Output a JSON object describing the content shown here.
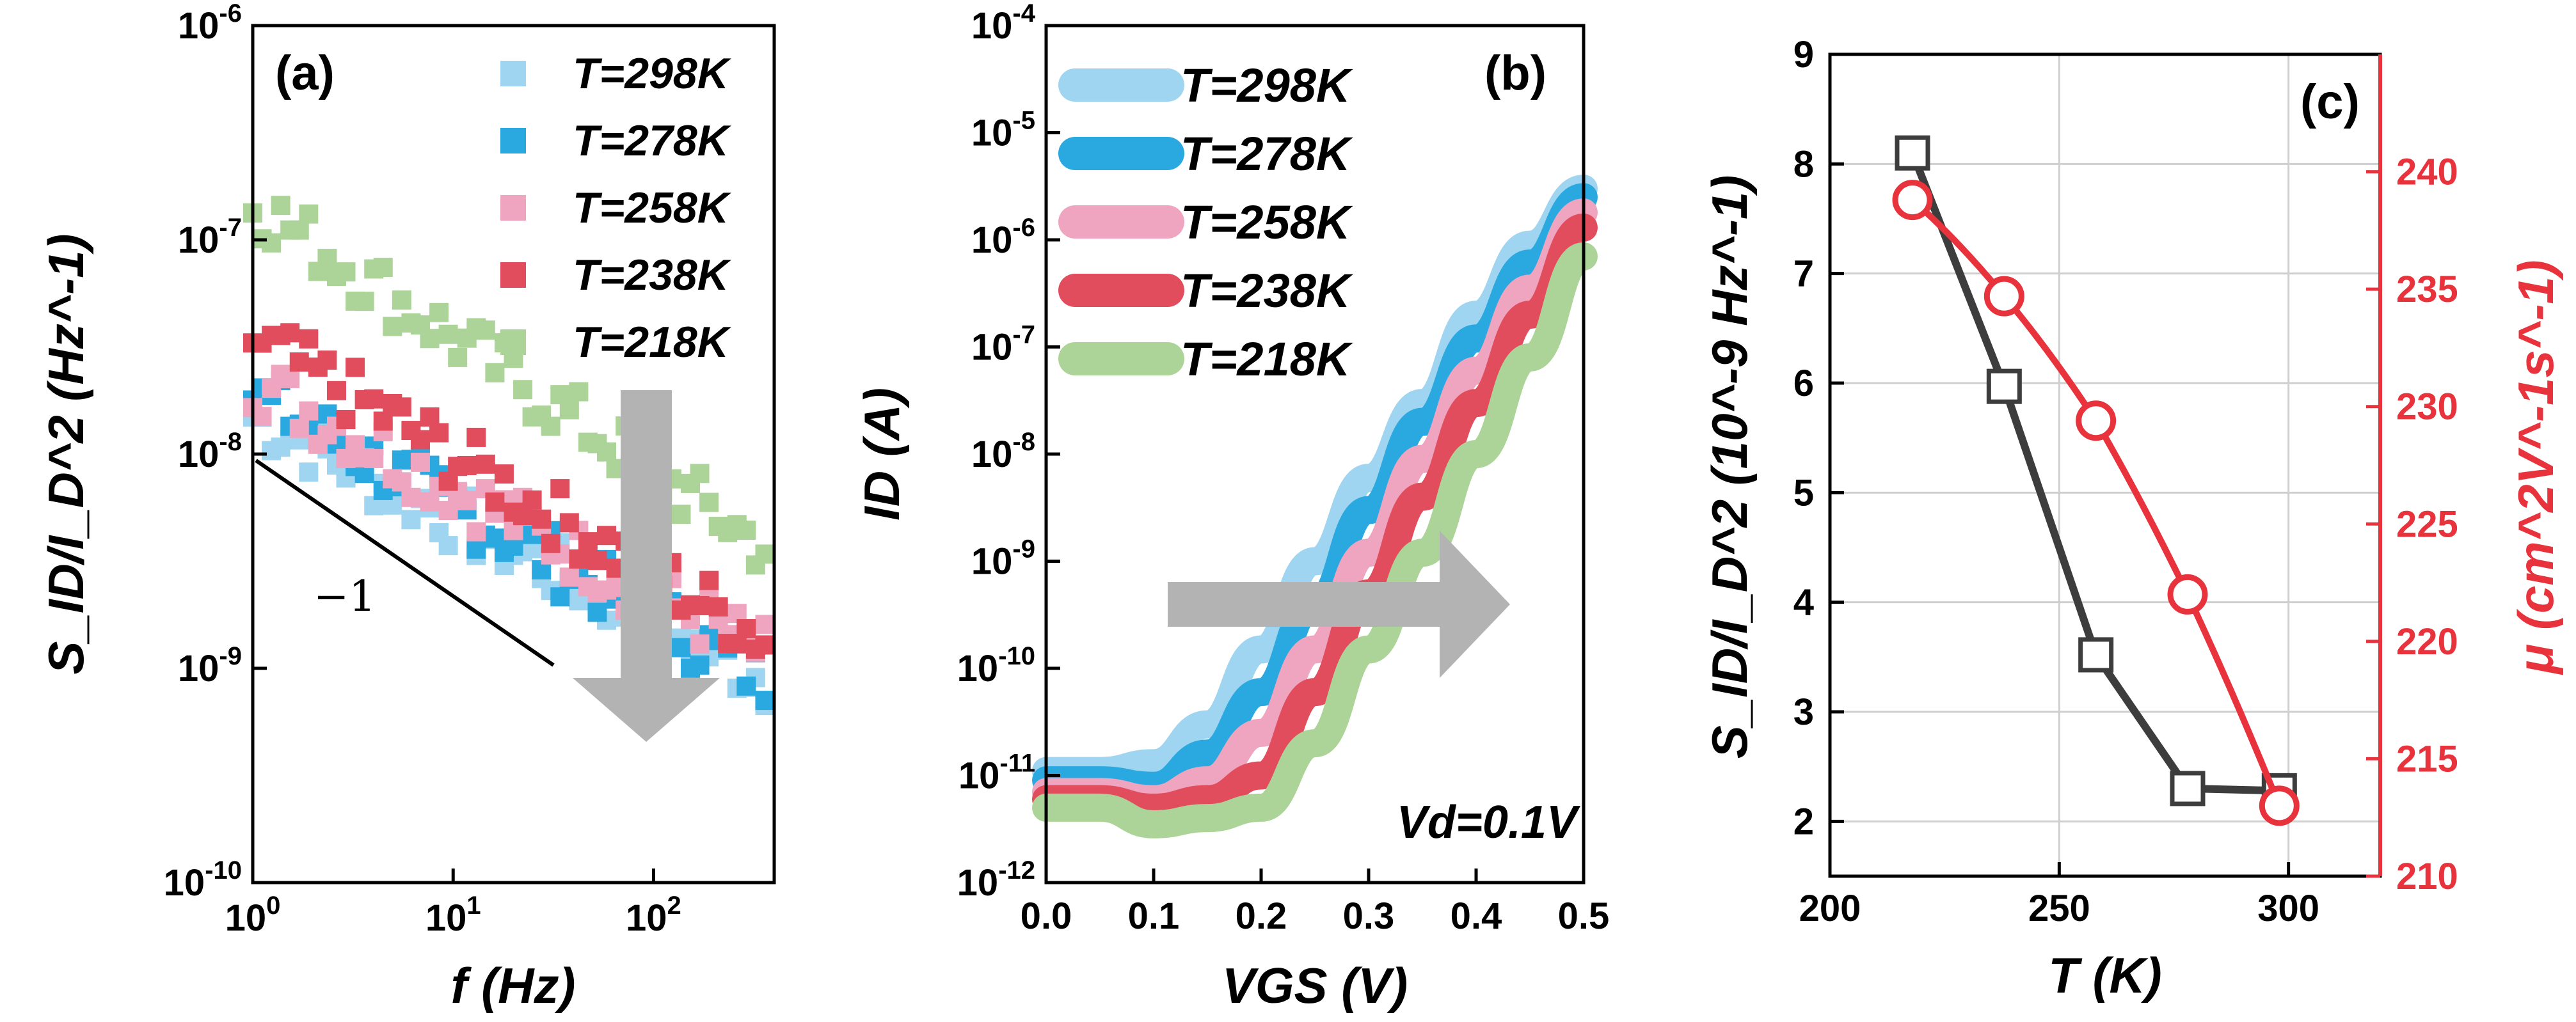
{
  "figure": {
    "panels": [
      {
        "id": "a",
        "panel_label": "(a)",
        "type": "scatter",
        "xscale": "log",
        "yscale": "log",
        "xlabel": "f (Hz)",
        "ylabel": "S_ID/I_D^2 (Hz^-1)",
        "xlim": [
          1,
          400
        ],
        "ylim": [
          1e-10,
          1e-06
        ],
        "xtick_labels": [
          "10^0",
          "10^1",
          "10^2"
        ],
        "ytick_labels": [
          "10^-10",
          "10^-9",
          "10^-8",
          "10^-7",
          "10^-6"
        ],
        "series": [
          {
            "name": "T=298K",
            "color": "#9fd5f0",
            "A": 1.5e-08,
            "slope": -0.48
          },
          {
            "name": "T=278K",
            "color": "#2aa9e0",
            "A": 1.9e-08,
            "slope": -0.52
          },
          {
            "name": "T=258K",
            "color": "#efa5c0",
            "A": 2.2e-08,
            "slope": -0.5
          },
          {
            "name": "T=238K",
            "color": "#e14d5d",
            "A": 3.5e-08,
            "slope": -0.55
          },
          {
            "name": "T=218K",
            "color": "#acd498",
            "A": 1.5e-07,
            "slope": -0.63
          }
        ],
        "reference_line": {
          "label": "−1",
          "from": [
            1,
            1e-08
          ],
          "to": [
            30,
            1.1e-09
          ]
        },
        "trend_arrow": "down"
      },
      {
        "id": "b",
        "panel_label": "(b)",
        "type": "line",
        "xscale": "linear",
        "yscale": "log",
        "xlabel": "VGS (V)",
        "ylabel": "ID (A)",
        "xlim": [
          0.0,
          0.5
        ],
        "ylim": [
          1e-12,
          0.0001
        ],
        "xtick_labels": [
          "0.0",
          "0.1",
          "0.2",
          "0.3",
          "0.4",
          "0.5"
        ],
        "ytick_labels": [
          "10^-12",
          "10^-11",
          "10^-10",
          "10^-9",
          "10^-8",
          "10^-7",
          "10^-6",
          "10^-5",
          "10^-4"
        ],
        "annotation": "Vd=0.1V",
        "trend_arrow": "right",
        "series": [
          {
            "name": "T=298K",
            "color": "#9fd5f0",
            "points": [
              [
                0.0,
                1.1e-11
              ],
              [
                0.05,
                1.1e-11
              ],
              [
                0.1,
                1.3e-11
              ],
              [
                0.15,
                3e-11
              ],
              [
                0.2,
                1.5e-10
              ],
              [
                0.25,
                1e-09
              ],
              [
                0.3,
                6e-09
              ],
              [
                0.35,
                3e-08
              ],
              [
                0.4,
                2e-07
              ],
              [
                0.45,
                9e-07
              ],
              [
                0.5,
                3e-06
              ]
            ]
          },
          {
            "name": "T=278K",
            "color": "#2aa9e0",
            "points": [
              [
                0.0,
                9e-12
              ],
              [
                0.05,
                9e-12
              ],
              [
                0.1,
                8e-12
              ],
              [
                0.15,
                1.6e-11
              ],
              [
                0.2,
                6e-11
              ],
              [
                0.25,
                4e-10
              ],
              [
                0.3,
                3e-09
              ],
              [
                0.35,
                2e-08
              ],
              [
                0.4,
                1.2e-07
              ],
              [
                0.45,
                6e-07
              ],
              [
                0.5,
                2.5e-06
              ]
            ]
          },
          {
            "name": "T=258K",
            "color": "#efa5c0",
            "points": [
              [
                0.0,
                7e-12
              ],
              [
                0.05,
                7e-12
              ],
              [
                0.1,
                6e-12
              ],
              [
                0.15,
                9e-12
              ],
              [
                0.2,
                2.5e-11
              ],
              [
                0.25,
                1.5e-10
              ],
              [
                0.3,
                1.2e-09
              ],
              [
                0.35,
                9e-09
              ],
              [
                0.4,
                6e-08
              ],
              [
                0.45,
                3.5e-07
              ],
              [
                0.5,
                1.8e-06
              ]
            ]
          },
          {
            "name": "T=238K",
            "color": "#e14d5d",
            "points": [
              [
                0.0,
                6e-12
              ],
              [
                0.05,
                6e-12
              ],
              [
                0.1,
                5e-12
              ],
              [
                0.15,
                6e-12
              ],
              [
                0.2,
                1e-11
              ],
              [
                0.25,
                6e-11
              ],
              [
                0.3,
                5e-10
              ],
              [
                0.35,
                4e-09
              ],
              [
                0.4,
                3e-08
              ],
              [
                0.45,
                2e-07
              ],
              [
                0.5,
                1.3e-06
              ]
            ]
          },
          {
            "name": "T=218K",
            "color": "#acd498",
            "points": [
              [
                0.0,
                5e-12
              ],
              [
                0.05,
                5e-12
              ],
              [
                0.1,
                3.5e-12
              ],
              [
                0.15,
                4e-12
              ],
              [
                0.2,
                5e-12
              ],
              [
                0.25,
                2e-11
              ],
              [
                0.3,
                1.5e-10
              ],
              [
                0.35,
                1.2e-09
              ],
              [
                0.4,
                1e-08
              ],
              [
                0.45,
                8e-08
              ],
              [
                0.5,
                7e-07
              ]
            ]
          }
        ]
      },
      {
        "id": "c",
        "panel_label": "(c)",
        "type": "line",
        "xlabel": "T (K)",
        "ylabel_left": "S_ID/I_D^2 (10^-9 Hz^-1)",
        "ylabel_right": "μ (cm^2V^-1s^-1)",
        "xlim": [
          200,
          320
        ],
        "ylim_left": [
          1.5,
          9
        ],
        "ylim_right": [
          210,
          245
        ],
        "xtick_labels": [
          "200",
          "250",
          "300"
        ],
        "ytick_labels_left": [
          "2",
          "3",
          "4",
          "5",
          "6",
          "7",
          "8",
          "9"
        ],
        "ytick_labels_right": [
          "210",
          "215",
          "220",
          "225",
          "230",
          "235",
          "240"
        ],
        "grid": true,
        "series": [
          {
            "name": "S_ID/I_D^2",
            "axis": "left",
            "color": "#3d3d3d",
            "marker": "square",
            "x": [
              218,
              238,
              258,
              278,
              298
            ],
            "y": [
              8.1,
              5.97,
              3.52,
              2.3,
              2.28
            ]
          },
          {
            "name": "mobility",
            "axis": "right",
            "color": "#e8323c",
            "marker": "circle",
            "x": [
              218,
              238,
              258,
              278,
              298
            ],
            "y": [
              238.8,
              234.7,
              229.4,
              222.0,
              213.0
            ]
          }
        ]
      }
    ],
    "colors": {
      "axis": "#000000",
      "arrow": "#b3b3b3",
      "mobility_axis": "#e8323c"
    }
  }
}
